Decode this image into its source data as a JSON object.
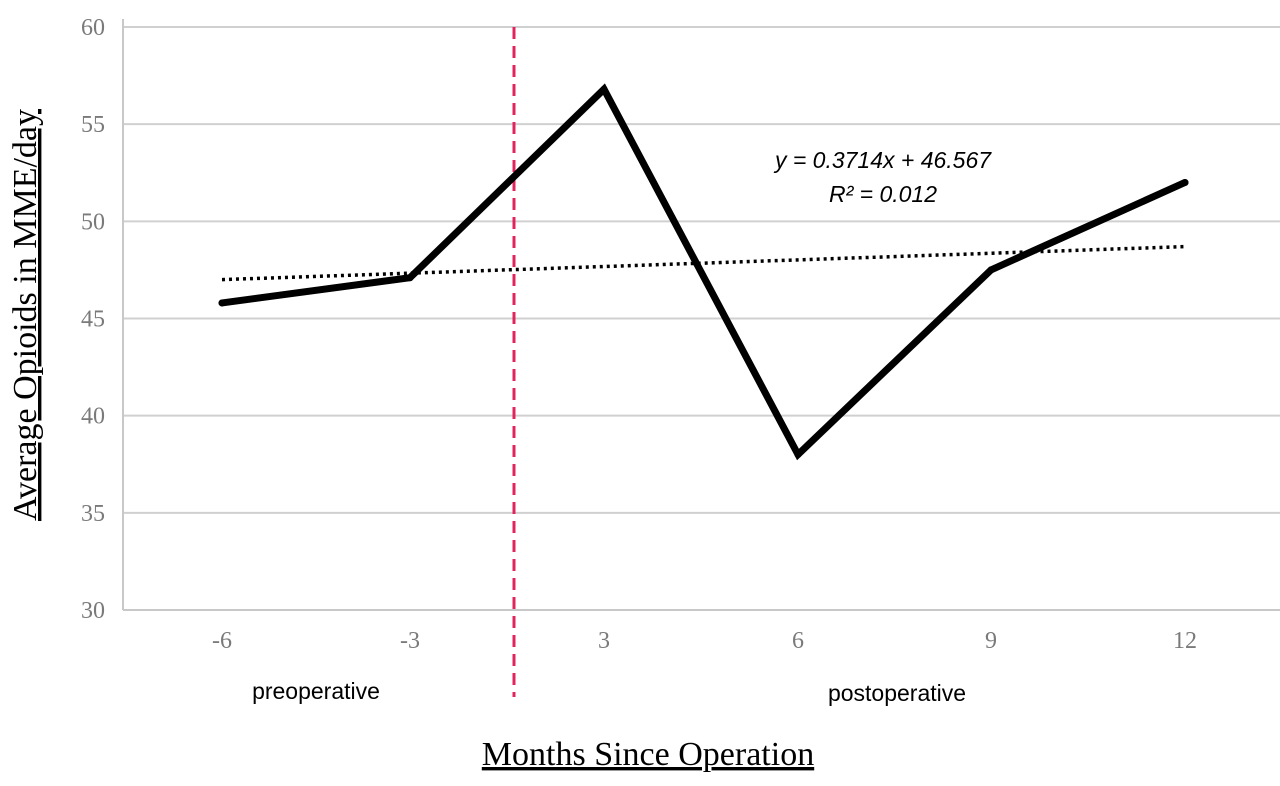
{
  "chart_data": {
    "type": "line",
    "categories": [
      "-6",
      "-3",
      "3",
      "6",
      "9",
      "12"
    ],
    "series": [
      {
        "values": [
          45.8,
          47.1,
          56.8,
          38.0,
          47.5,
          52.0
        ]
      }
    ],
    "trendline": {
      "style": "dotted",
      "start": 47.0,
      "end": 48.7
    },
    "xlabel": "Months Since Operation",
    "ylabel": "Average Opioids in MME/day",
    "ylim": [
      30,
      60
    ],
    "yticks": [
      "30",
      "35",
      "40",
      "45",
      "50",
      "55",
      "60"
    ],
    "grid": true,
    "annotations": {
      "equation": "y = 0.3714x + 46.567",
      "r_squared": "R² = 0.012",
      "pre_label": "preoperative",
      "post_label": "postoperative"
    },
    "divider": {
      "after_category": "-3",
      "style": "dashed"
    }
  },
  "colors": {
    "series": "#000000",
    "trendline": "#000000",
    "divider": "#e0245e",
    "grid": "#d0d0d0",
    "axis": "#c8c8c8",
    "tick_text": "#7a7a7a"
  }
}
